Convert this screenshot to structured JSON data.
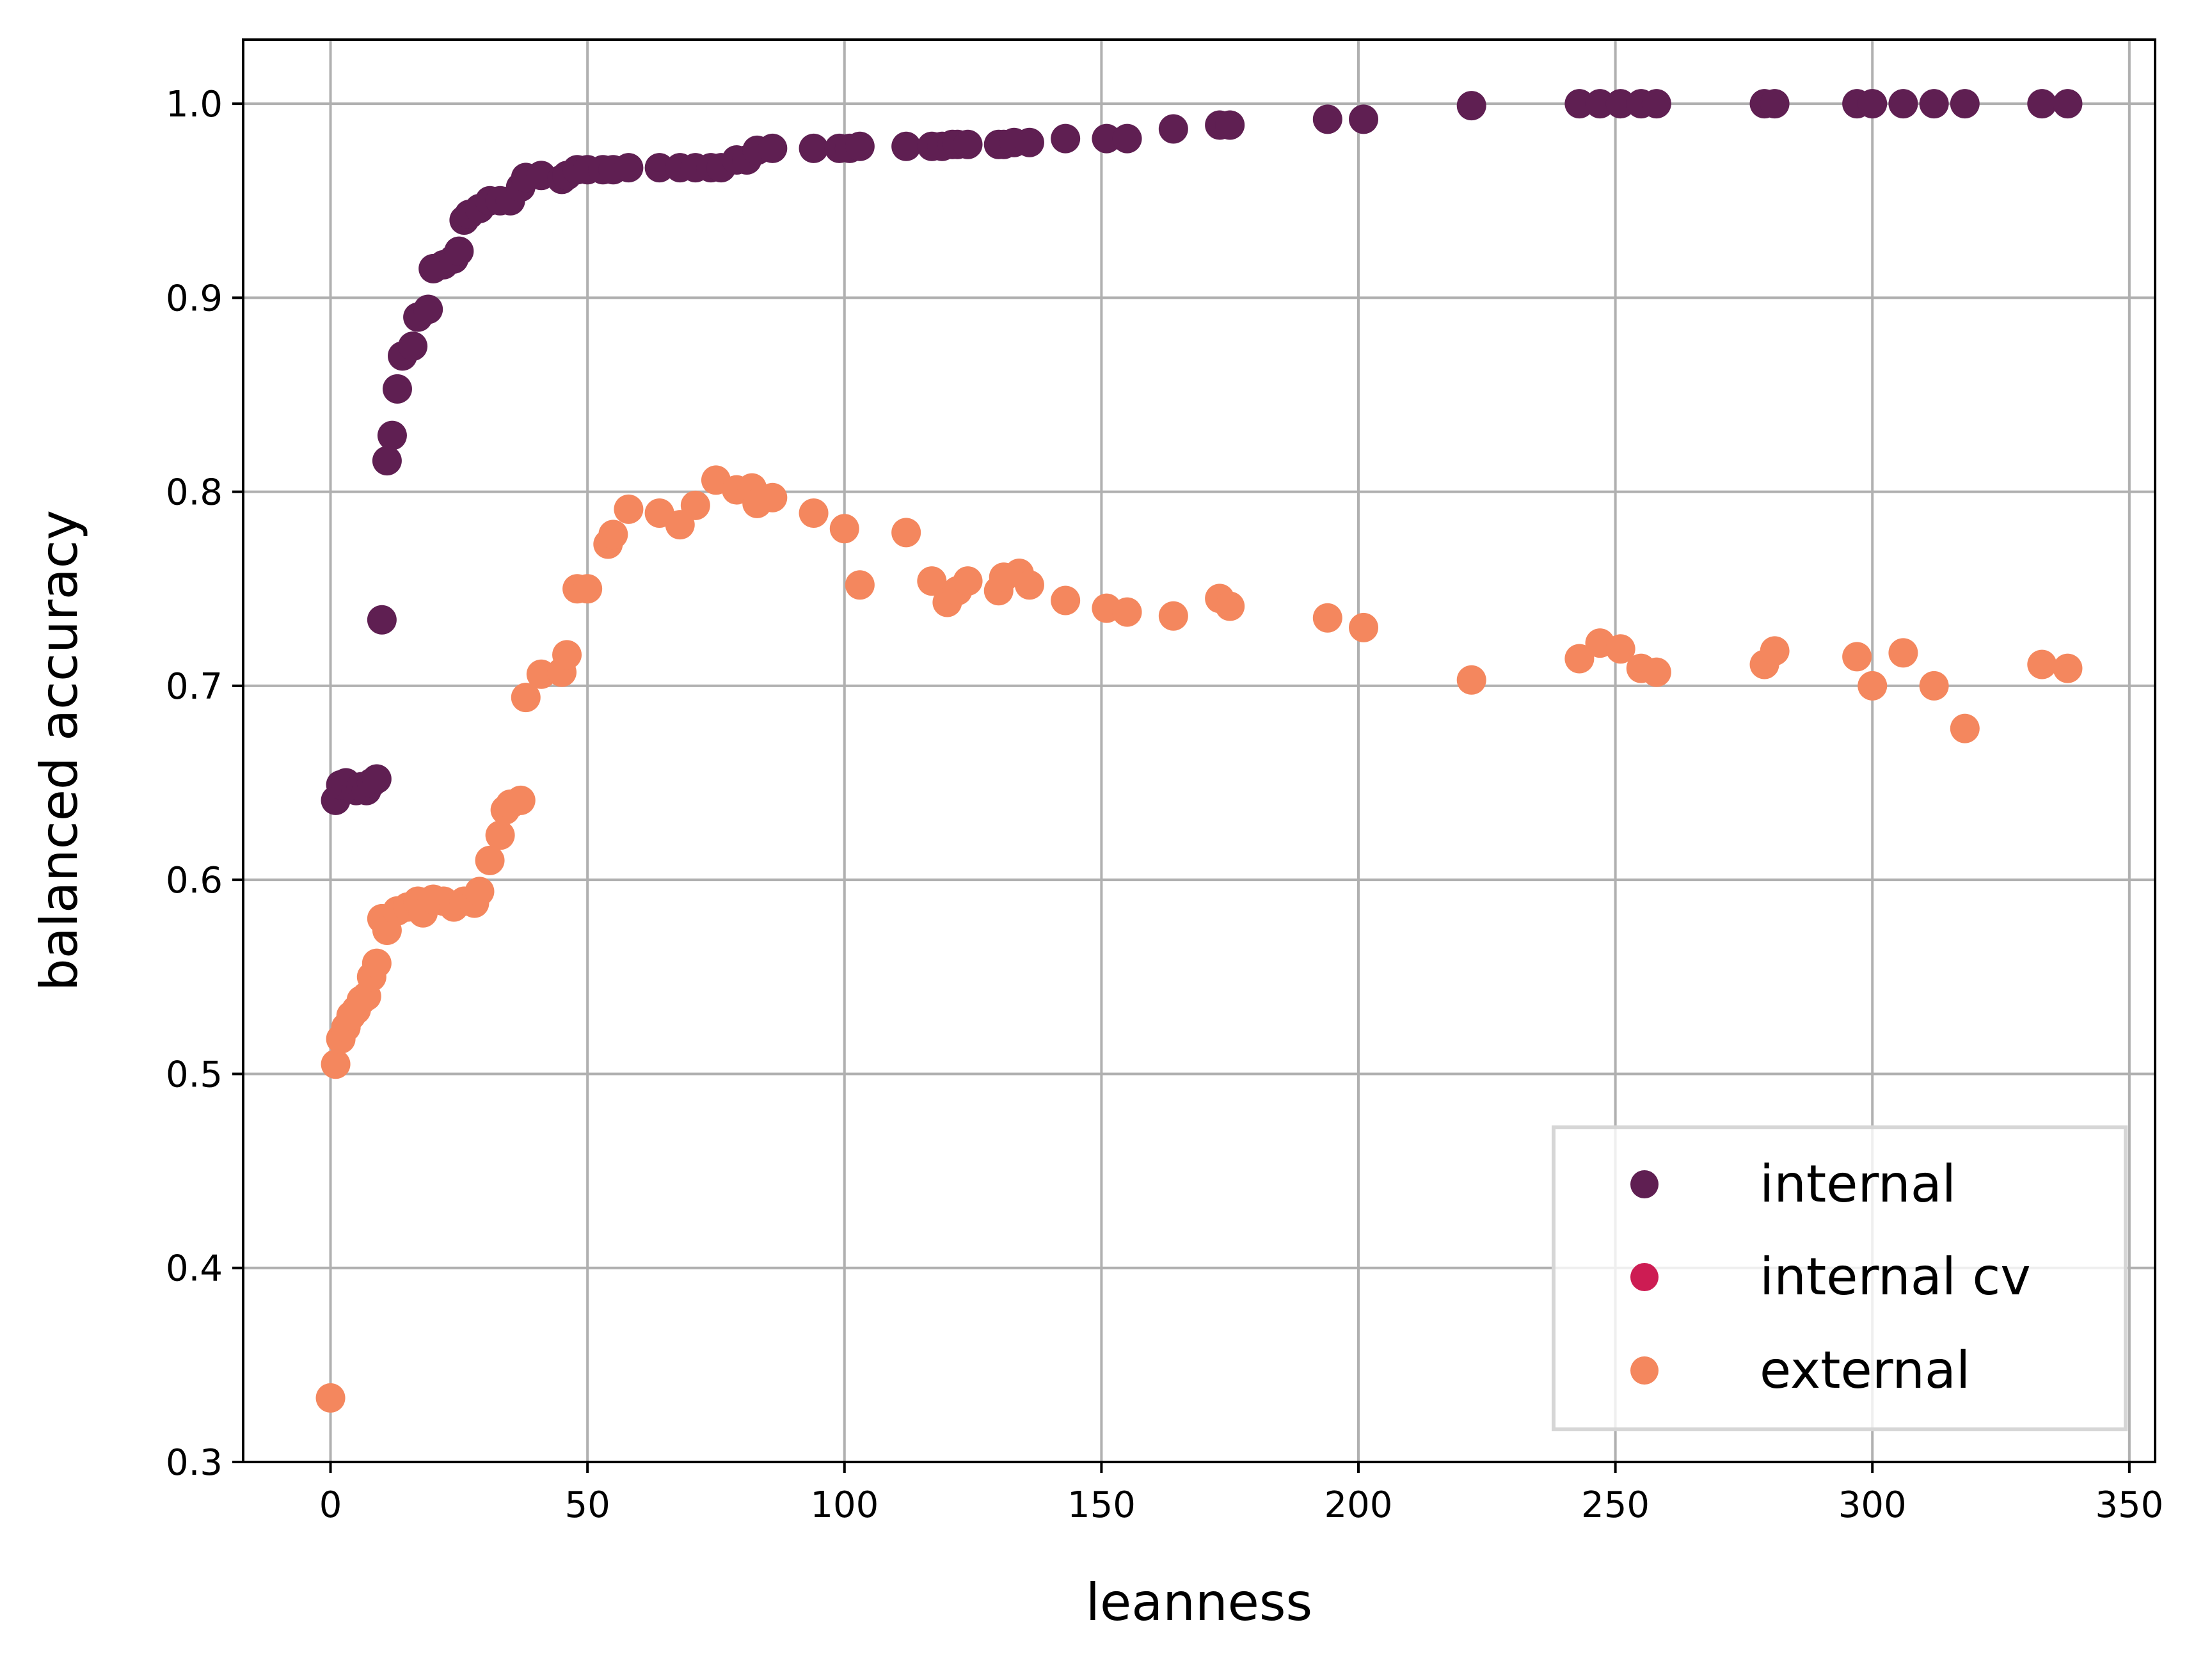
{
  "chart_data": {
    "type": "scatter",
    "title": "",
    "xlabel": "leanness",
    "ylabel": "balanced accuracy",
    "xlim": [
      -17,
      355
    ],
    "ylim": [
      0.3,
      1.033
    ],
    "xticks": [
      0,
      50,
      100,
      150,
      200,
      250,
      300,
      350
    ],
    "xtick_labels": [
      "0",
      "50",
      "100",
      "150",
      "200",
      "250",
      "300",
      "350"
    ],
    "yticks": [
      0.3,
      0.4,
      0.5,
      0.6,
      0.7,
      0.8,
      0.9,
      1.0
    ],
    "ytick_labels": [
      "0.3",
      "0.4",
      "0.5",
      "0.6",
      "0.7",
      "0.8",
      "0.9",
      "1.0"
    ],
    "grid": true,
    "legend_position": "lower-right",
    "series": [
      {
        "name": "internal",
        "color": "#5f1f52",
        "points": [
          [
            1,
            0.641
          ],
          [
            2,
            0.649
          ],
          [
            3,
            0.65
          ],
          [
            5,
            0.646
          ],
          [
            6,
            0.648
          ],
          [
            7,
            0.646
          ],
          [
            8,
            0.65
          ],
          [
            9,
            0.652
          ],
          [
            10,
            0.734
          ],
          [
            11,
            0.816
          ],
          [
            12,
            0.829
          ],
          [
            13,
            0.853
          ],
          [
            14,
            0.87
          ],
          [
            16,
            0.875
          ],
          [
            17,
            0.89
          ],
          [
            19,
            0.894
          ],
          [
            20,
            0.915
          ],
          [
            22,
            0.917
          ],
          [
            24,
            0.92
          ],
          [
            25,
            0.924
          ],
          [
            26,
            0.94
          ],
          [
            27,
            0.943
          ],
          [
            29,
            0.946
          ],
          [
            31,
            0.95
          ],
          [
            33,
            0.95
          ],
          [
            35,
            0.95
          ],
          [
            37,
            0.957
          ],
          [
            38,
            0.962
          ],
          [
            41,
            0.963
          ],
          [
            45,
            0.961
          ],
          [
            46,
            0.963
          ],
          [
            48,
            0.966
          ],
          [
            50,
            0.966
          ],
          [
            53,
            0.966
          ],
          [
            55,
            0.966
          ],
          [
            58,
            0.967
          ],
          [
            64,
            0.967
          ],
          [
            68,
            0.967
          ],
          [
            71,
            0.967
          ],
          [
            74,
            0.967
          ],
          [
            76,
            0.967
          ],
          [
            79,
            0.971
          ],
          [
            81,
            0.971
          ],
          [
            83,
            0.976
          ],
          [
            86,
            0.977
          ],
          [
            94,
            0.977
          ],
          [
            99,
            0.977
          ],
          [
            101,
            0.977
          ],
          [
            103,
            0.978
          ],
          [
            112,
            0.978
          ],
          [
            117,
            0.978
          ],
          [
            119,
            0.978
          ],
          [
            121,
            0.979
          ],
          [
            122,
            0.979
          ],
          [
            124,
            0.979
          ],
          [
            130,
            0.979
          ],
          [
            131,
            0.979
          ],
          [
            133,
            0.98
          ],
          [
            136,
            0.98
          ],
          [
            143,
            0.982
          ],
          [
            151,
            0.982
          ],
          [
            155,
            0.982
          ],
          [
            164,
            0.987
          ],
          [
            173,
            0.989
          ],
          [
            175,
            0.989
          ],
          [
            194,
            0.992
          ],
          [
            201,
            0.992
          ],
          [
            222,
            0.999
          ],
          [
            243,
            1.0
          ],
          [
            247,
            1.0
          ],
          [
            251,
            1.0
          ],
          [
            255,
            1.0
          ],
          [
            258,
            1.0
          ],
          [
            279,
            1.0
          ],
          [
            281,
            1.0
          ],
          [
            297,
            1.0
          ],
          [
            300,
            1.0
          ],
          [
            306,
            1.0
          ],
          [
            312,
            1.0
          ],
          [
            318,
            1.0
          ],
          [
            333,
            1.0
          ],
          [
            338,
            1.0
          ]
        ]
      },
      {
        "name": "internal cv",
        "color": "#cd1c53",
        "points": []
      },
      {
        "name": "external",
        "color": "#f4875e",
        "points": [
          [
            0,
            0.333
          ],
          [
            1,
            0.505
          ],
          [
            2,
            0.518
          ],
          [
            3,
            0.524
          ],
          [
            4,
            0.53
          ],
          [
            5,
            0.533
          ],
          [
            6,
            0.538
          ],
          [
            7,
            0.54
          ],
          [
            8,
            0.55
          ],
          [
            9,
            0.557
          ],
          [
            10,
            0.58
          ],
          [
            11,
            0.574
          ],
          [
            13,
            0.584
          ],
          [
            15,
            0.586
          ],
          [
            17,
            0.589
          ],
          [
            18,
            0.583
          ],
          [
            20,
            0.59
          ],
          [
            22,
            0.589
          ],
          [
            24,
            0.586
          ],
          [
            26,
            0.589
          ],
          [
            28,
            0.588
          ],
          [
            29,
            0.594
          ],
          [
            31,
            0.61
          ],
          [
            33,
            0.623
          ],
          [
            34,
            0.636
          ],
          [
            35,
            0.639
          ],
          [
            37,
            0.641
          ],
          [
            38,
            0.694
          ],
          [
            41,
            0.706
          ],
          [
            45,
            0.707
          ],
          [
            46,
            0.716
          ],
          [
            48,
            0.75
          ],
          [
            50,
            0.75
          ],
          [
            54,
            0.773
          ],
          [
            55,
            0.778
          ],
          [
            58,
            0.791
          ],
          [
            64,
            0.789
          ],
          [
            68,
            0.783
          ],
          [
            71,
            0.793
          ],
          [
            75,
            0.806
          ],
          [
            79,
            0.801
          ],
          [
            82,
            0.802
          ],
          [
            83,
            0.794
          ],
          [
            86,
            0.797
          ],
          [
            94,
            0.789
          ],
          [
            100,
            0.781
          ],
          [
            103,
            0.752
          ],
          [
            112,
            0.779
          ],
          [
            117,
            0.754
          ],
          [
            120,
            0.743
          ],
          [
            122,
            0.749
          ],
          [
            124,
            0.754
          ],
          [
            130,
            0.749
          ],
          [
            131,
            0.756
          ],
          [
            134,
            0.758
          ],
          [
            136,
            0.752
          ],
          [
            143,
            0.744
          ],
          [
            151,
            0.74
          ],
          [
            155,
            0.738
          ],
          [
            164,
            0.736
          ],
          [
            173,
            0.745
          ],
          [
            175,
            0.741
          ],
          [
            194,
            0.735
          ],
          [
            201,
            0.73
          ],
          [
            222,
            0.703
          ],
          [
            243,
            0.714
          ],
          [
            247,
            0.722
          ],
          [
            251,
            0.719
          ],
          [
            255,
            0.709
          ],
          [
            258,
            0.707
          ],
          [
            279,
            0.711
          ],
          [
            281,
            0.718
          ],
          [
            297,
            0.715
          ],
          [
            300,
            0.7
          ],
          [
            306,
            0.717
          ],
          [
            312,
            0.7
          ],
          [
            318,
            0.678
          ],
          [
            333,
            0.711
          ],
          [
            338,
            0.709
          ]
        ]
      }
    ]
  }
}
